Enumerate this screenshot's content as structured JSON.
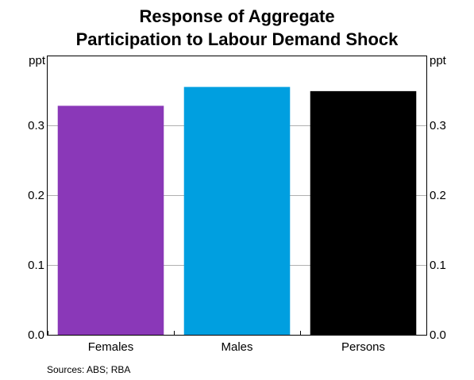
{
  "chart_data": {
    "type": "bar",
    "title": [
      "Response of Aggregate",
      "Participation to Labour Demand Shock"
    ],
    "categories": [
      "Females",
      "Males",
      "Persons"
    ],
    "values": [
      0.328,
      0.355,
      0.349
    ],
    "colors": [
      "#8a38b8",
      "#009fe0",
      "#000000"
    ],
    "ylabel_left": "ppt",
    "ylabel_right": "ppt",
    "ylim": [
      0.0,
      0.4
    ],
    "yticks": [
      "0.0",
      "0.1",
      "0.2",
      "0.3"
    ],
    "grid": true,
    "source": "Sources:   ABS; RBA"
  }
}
